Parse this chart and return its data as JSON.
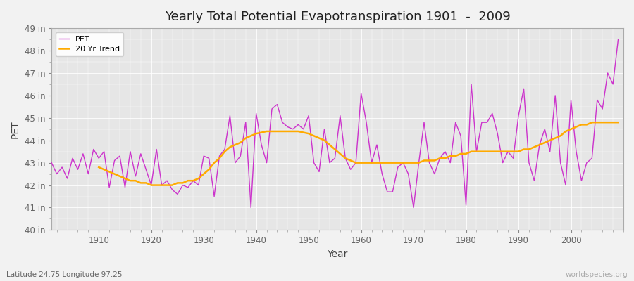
{
  "title": "Yearly Total Potential Evapotranspiration 1901  -  2009",
  "xlabel": "Year",
  "ylabel": "PET",
  "subtitle": "Latitude 24.75 Longitude 97.25",
  "watermark": "worldspecies.org",
  "bg_color": "#f0f0f0",
  "plot_bg_color": "#e8e8e8",
  "pet_color": "#cc33cc",
  "trend_color": "#ffaa00",
  "ylim": [
    40,
    49
  ],
  "yticks": [
    40,
    41,
    42,
    43,
    44,
    45,
    46,
    47,
    48,
    49
  ],
  "ytick_labels": [
    "40 in",
    "41 in",
    "42 in",
    "43 in",
    "44 in",
    "45 in",
    "46 in",
    "47 in",
    "48 in",
    "49 in"
  ],
  "xticks": [
    1910,
    1920,
    1930,
    1940,
    1950,
    1960,
    1970,
    1980,
    1990,
    2000
  ],
  "years": [
    1901,
    1902,
    1903,
    1904,
    1905,
    1906,
    1907,
    1908,
    1909,
    1910,
    1911,
    1912,
    1913,
    1914,
    1915,
    1916,
    1917,
    1918,
    1919,
    1920,
    1921,
    1922,
    1923,
    1924,
    1925,
    1926,
    1927,
    1928,
    1929,
    1930,
    1931,
    1932,
    1933,
    1934,
    1935,
    1936,
    1937,
    1938,
    1939,
    1940,
    1941,
    1942,
    1943,
    1944,
    1945,
    1946,
    1947,
    1948,
    1949,
    1950,
    1951,
    1952,
    1953,
    1954,
    1955,
    1956,
    1957,
    1958,
    1959,
    1960,
    1961,
    1962,
    1963,
    1964,
    1965,
    1966,
    1967,
    1968,
    1969,
    1970,
    1971,
    1972,
    1973,
    1974,
    1975,
    1976,
    1977,
    1978,
    1979,
    1980,
    1981,
    1982,
    1983,
    1984,
    1985,
    1986,
    1987,
    1988,
    1989,
    1990,
    1991,
    1992,
    1993,
    1994,
    1995,
    1996,
    1997,
    1998,
    1999,
    2000,
    2001,
    2002,
    2003,
    2004,
    2005,
    2006,
    2007,
    2008,
    2009
  ],
  "pet_values": [
    43.0,
    42.5,
    42.8,
    42.3,
    43.2,
    42.7,
    43.4,
    42.5,
    43.6,
    43.2,
    43.5,
    41.9,
    43.1,
    43.3,
    41.9,
    43.5,
    42.4,
    43.4,
    42.7,
    42.0,
    43.6,
    42.0,
    42.2,
    41.8,
    41.6,
    42.0,
    41.9,
    42.2,
    42.0,
    43.3,
    43.2,
    41.5,
    43.3,
    43.6,
    45.1,
    43.0,
    43.3,
    44.8,
    41.0,
    45.2,
    43.8,
    43.0,
    45.4,
    45.6,
    44.8,
    44.6,
    44.5,
    44.7,
    44.5,
    45.1,
    43.0,
    42.6,
    44.5,
    43.0,
    43.2,
    45.1,
    43.2,
    42.7,
    43.0,
    46.1,
    44.8,
    43.0,
    43.8,
    42.5,
    41.7,
    41.7,
    42.8,
    43.0,
    42.5,
    41.0,
    43.0,
    44.8,
    43.0,
    42.5,
    43.2,
    43.5,
    43.0,
    44.8,
    44.2,
    41.1,
    46.5,
    43.5,
    44.8,
    44.8,
    45.2,
    44.3,
    43.0,
    43.5,
    43.2,
    45.1,
    46.3,
    43.0,
    42.2,
    43.8,
    44.5,
    43.5,
    46.0,
    43.0,
    42.0,
    45.8,
    43.5,
    42.2,
    43.0,
    43.2,
    45.8,
    45.4,
    47.0,
    46.5,
    48.5
  ],
  "trend_values": [
    null,
    null,
    null,
    null,
    null,
    null,
    null,
    null,
    null,
    42.8,
    42.7,
    42.6,
    42.5,
    42.4,
    42.3,
    42.2,
    42.2,
    42.1,
    42.1,
    42.0,
    42.0,
    42.0,
    42.0,
    42.0,
    42.1,
    42.1,
    42.2,
    42.2,
    42.3,
    42.5,
    42.7,
    43.0,
    43.2,
    43.5,
    43.7,
    43.8,
    43.9,
    44.1,
    44.2,
    44.3,
    44.35,
    44.4,
    44.4,
    44.4,
    44.4,
    44.4,
    44.4,
    44.4,
    44.35,
    44.3,
    44.2,
    44.1,
    44.0,
    43.8,
    43.6,
    43.4,
    43.2,
    43.1,
    43.0,
    43.0,
    43.0,
    43.0,
    43.0,
    43.0,
    43.0,
    43.0,
    43.0,
    43.0,
    43.0,
    43.0,
    43.0,
    43.1,
    43.1,
    43.1,
    43.2,
    43.2,
    43.3,
    43.3,
    43.4,
    43.4,
    43.5,
    43.5,
    43.5,
    43.5,
    43.5,
    43.5,
    43.5,
    43.5,
    43.5,
    43.5,
    43.6,
    43.6,
    43.7,
    43.8,
    43.9,
    44.0,
    44.1,
    44.2,
    44.4,
    44.5,
    44.6,
    44.7,
    44.7,
    44.8,
    44.8,
    44.8,
    44.8,
    44.8,
    44.8
  ]
}
